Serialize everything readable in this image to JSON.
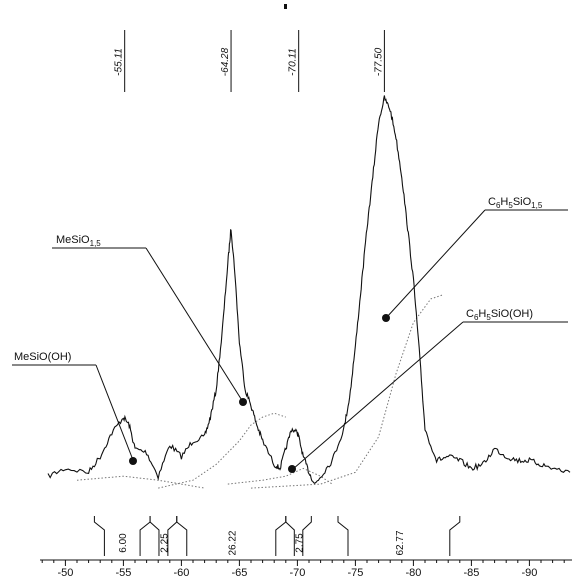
{
  "chart_data": {
    "type": "line",
    "title": "",
    "xlabel": "",
    "ylabel": "",
    "xlim": [
      -48.5,
      -93.5
    ],
    "ylim": [
      0,
      100
    ],
    "x_ticks": [
      -50,
      -55,
      -60,
      -65,
      -70,
      -75,
      -80,
      -85,
      -90
    ],
    "x_tick_labels": [
      "-50",
      "-55",
      "-60",
      "-65",
      "-70",
      "-75",
      "-80",
      "-85",
      "-90"
    ],
    "peak_positions": [
      {
        "x": -55.11,
        "label": "-55.11"
      },
      {
        "x": -64.28,
        "label": "-64.28"
      },
      {
        "x": -70.11,
        "label": "-70.11"
      },
      {
        "x": -77.5,
        "label": "-77.50"
      }
    ],
    "spectrum": {
      "x": [
        -48.5,
        -50,
        -52,
        -53,
        -54,
        -55,
        -55.5,
        -56,
        -57,
        -58,
        -59,
        -60,
        -61,
        -62,
        -62.5,
        -63,
        -63.5,
        -64,
        -64.28,
        -64.6,
        -65,
        -65.5,
        -66,
        -66.5,
        -67,
        -68,
        -68.5,
        -69,
        -69.5,
        -70,
        -70.11,
        -70.5,
        -71,
        -71.5,
        -72,
        -73,
        -74,
        -74.5,
        -75,
        -75.5,
        -76,
        -76.5,
        -77,
        -77.5,
        -78,
        -78.5,
        -79,
        -79.5,
        -80,
        -80.5,
        -81,
        -82,
        -83,
        -84,
        -85,
        -86,
        -87,
        -88,
        -89,
        -90,
        -91,
        -92,
        -93.5
      ],
      "y": [
        4,
        6,
        5,
        9,
        15,
        19,
        17,
        11,
        10,
        4,
        12,
        9,
        13,
        14,
        19,
        26,
        40,
        58,
        67,
        56,
        38,
        26,
        22,
        17,
        13,
        7,
        6,
        11,
        16,
        15,
        14,
        9,
        5,
        2,
        4,
        8,
        16,
        24,
        37,
        52,
        67,
        80,
        94,
        100,
        97,
        90,
        80,
        67,
        54,
        36,
        16,
        8,
        9,
        8,
        6,
        7,
        11,
        9,
        8,
        8,
        7,
        6,
        5
      ]
    },
    "fitted_components": [
      {
        "x": [
          -51,
          -55,
          -58,
          -60,
          -62
        ],
        "y": [
          3,
          4,
          3,
          2,
          1
        ]
      },
      {
        "x": [
          -58,
          -61,
          -63,
          -65,
          -66,
          -67,
          -68,
          -69
        ],
        "y": [
          1,
          3,
          7,
          13,
          17,
          19,
          20,
          19
        ]
      },
      {
        "x": [
          -64,
          -67,
          -69,
          -70.5,
          -72,
          -73
        ],
        "y": [
          2,
          3,
          4,
          6,
          4,
          2
        ]
      },
      {
        "x": [
          -66,
          -72,
          -75,
          -77,
          -78.5,
          -80,
          -81.5,
          -82.5
        ],
        "y": [
          1,
          2,
          5,
          14,
          30,
          43,
          49,
          50
        ]
      }
    ],
    "integration_regions": [
      {
        "from": -52.5,
        "to": -57.3,
        "value": 6.0,
        "label": "6.00"
      },
      {
        "from": -57.3,
        "to": -59.6,
        "value": 2.25,
        "label": "2.25"
      },
      {
        "from": -59.6,
        "to": -69.0,
        "value": 26.22,
        "label": "26.22"
      },
      {
        "from": -69.0,
        "to": -71.2,
        "value": 2.75,
        "label": "2.75"
      },
      {
        "from": -73.5,
        "to": -84.0,
        "value": 62.77,
        "label": "62.77"
      }
    ],
    "annotations": [
      {
        "text": "MeSiO(OH)",
        "target_x": -56.5,
        "target_y": 10
      },
      {
        "text": "MeSiO1,5",
        "target_x": -66.5,
        "target_y": 24
      },
      {
        "text": "C6H5SiO(OH)",
        "target_x": -70.5,
        "target_y": 4
      },
      {
        "text": "C6H5SiO1,5",
        "target_x": -78.5,
        "target_y": 48
      }
    ]
  }
}
